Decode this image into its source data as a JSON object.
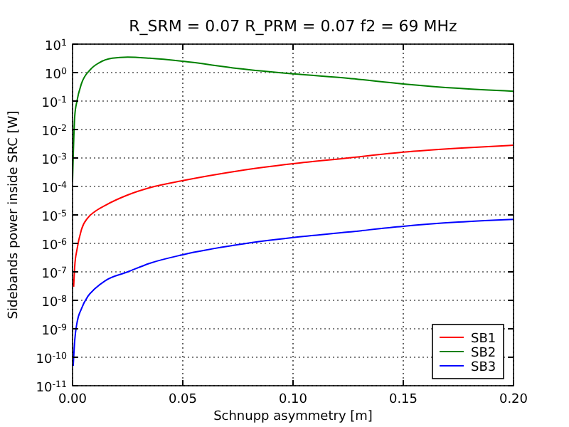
{
  "chart_data": {
    "type": "line",
    "title": "R_SRM = 0.07 R_PRM = 0.07   f2 = 69 MHz",
    "xlabel": "Schnupp asymmetry [m]",
    "ylabel": "Sidebands power inside SRC [W]",
    "log": "y",
    "grid": true,
    "legend": "bottom right",
    "line_style": "solid",
    "marker": "none",
    "xlim": [
      0,
      0.2
    ],
    "xticks": [
      {
        "value": 0,
        "label": "0.00"
      },
      {
        "value": 0.05,
        "label": "0.05"
      },
      {
        "value": 0.1,
        "label": "0.10"
      },
      {
        "value": 0.15,
        "label": "0.15"
      },
      {
        "value": 0.2,
        "label": "0.20"
      }
    ],
    "ylim": [
      1e-11,
      10
    ],
    "yticks": [
      {
        "value": 1e-11,
        "label": "10$^{-11}$"
      },
      {
        "value": 1e-10,
        "label": "10$^{-10}$"
      },
      {
        "value": 1e-09,
        "label": "10$^{-9}$"
      },
      {
        "value": 1e-08,
        "label": "10$^{-8}$"
      },
      {
        "value": 1e-07,
        "label": "10$^{-7}$"
      },
      {
        "value": 1e-06,
        "label": "10$^{-6}$"
      },
      {
        "value": 1e-05,
        "label": "10$^{-5}$"
      },
      {
        "value": 0.0001,
        "label": "10$^{-4}$"
      },
      {
        "value": 0.001,
        "label": "10$^{-3}$"
      },
      {
        "value": 0.01,
        "label": "10$^{-2}$"
      },
      {
        "value": 0.1,
        "label": "10$^{-1}$"
      },
      {
        "value": 1,
        "label": "10$^{0}$"
      },
      {
        "value": 10,
        "label": "10$^{1}$"
      }
    ],
    "series": [
      {
        "name": "SB1",
        "color": "#ff0000",
        "x": [
          0.0005,
          0.001,
          0.002,
          0.004,
          0.007,
          0.01,
          0.015,
          0.025,
          0.035,
          0.05,
          0.075,
          0.1,
          0.125,
          0.15,
          0.175,
          0.2
        ],
        "values": [
          3e-08,
          1.6e-07,
          6e-07,
          3e-06,
          8e-06,
          1.3e-05,
          2.2e-05,
          5e-05,
          9e-05,
          0.00016,
          0.00035,
          0.00063,
          0.001,
          0.0016,
          0.0022,
          0.0028
        ]
      },
      {
        "name": "SB2",
        "color": "#008000",
        "x": [
          0,
          0.001,
          0.002,
          0.004,
          0.008,
          0.012,
          0.018,
          0.025,
          0.035,
          0.05,
          0.075,
          0.1,
          0.125,
          0.15,
          0.175,
          0.2
        ],
        "values": [
          0.00016,
          0.03,
          0.1,
          0.4,
          1.26,
          2.2,
          3.2,
          3.5,
          3.2,
          2.5,
          1.4,
          0.9,
          0.63,
          0.4,
          0.28,
          0.22
        ]
      },
      {
        "name": "SB3",
        "color": "#0000ff",
        "x": [
          0.0003,
          0.001,
          0.002,
          0.004,
          0.007,
          0.01,
          0.015,
          0.025,
          0.035,
          0.05,
          0.075,
          0.1,
          0.125,
          0.15,
          0.175,
          0.2
        ],
        "values": [
          5e-11,
          4e-10,
          1.6e-09,
          5e-09,
          1.4e-08,
          2.5e-08,
          5e-08,
          1e-07,
          2e-07,
          4e-07,
          9e-07,
          1.6e-06,
          2.5e-06,
          4e-06,
          5.6e-06,
          7e-06
        ]
      }
    ]
  }
}
